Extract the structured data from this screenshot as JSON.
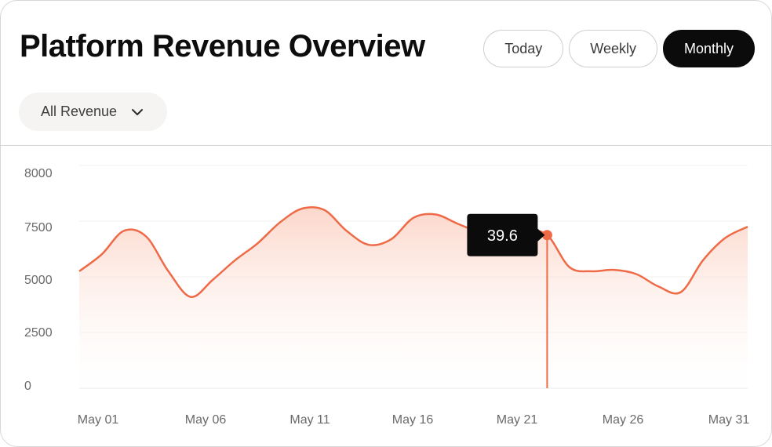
{
  "header": {
    "title": "Platform Revenue Overview",
    "range_tabs": [
      {
        "label": "Today",
        "active": false
      },
      {
        "label": "Weekly",
        "active": false
      },
      {
        "label": "Monthly",
        "active": true
      }
    ],
    "filter": {
      "label": "All Revenue",
      "icon": "chevron-down-icon"
    }
  },
  "colors": {
    "accent": "#ef6a46",
    "fill_top": "#fcd5c8",
    "tooltip_bg": "#0b0b0b",
    "tooltip_text": "#ffffff"
  },
  "chart_data": {
    "type": "area",
    "title": "",
    "xlabel": "",
    "ylabel": "",
    "ylim": [
      0,
      8000
    ],
    "yticks": [
      "8000",
      "7500",
      "5000",
      "2500",
      "0"
    ],
    "xticks": [
      "May 01",
      "May 06",
      "May 11",
      "May 16",
      "May 21",
      "May 26",
      "May 31"
    ],
    "grid": true,
    "series": [
      {
        "values": [
          [
            1,
            4200
          ],
          [
            2,
            4800
          ],
          [
            3,
            5650
          ],
          [
            4,
            5450
          ],
          [
            5,
            4200
          ],
          [
            6,
            3280
          ],
          [
            7,
            3900
          ],
          [
            8,
            4600
          ],
          [
            9,
            5200
          ],
          [
            10,
            5950
          ],
          [
            11,
            6450
          ],
          [
            12,
            6400
          ],
          [
            13,
            5650
          ],
          [
            14,
            5150
          ],
          [
            15,
            5350
          ],
          [
            16,
            6120
          ],
          [
            17,
            6240
          ],
          [
            18,
            5900
          ],
          [
            19,
            5600
          ],
          [
            20,
            5500
          ],
          [
            21,
            5650
          ],
          [
            22,
            5500
          ],
          [
            23,
            4350
          ],
          [
            24,
            4200
          ],
          [
            25,
            4250
          ],
          [
            26,
            4100
          ],
          [
            27,
            3650
          ],
          [
            28,
            3450
          ],
          [
            29,
            4600
          ],
          [
            30,
            5400
          ],
          [
            31,
            5800
          ]
        ]
      }
    ],
    "tooltip": {
      "value": "39.6",
      "x": 22
    }
  }
}
